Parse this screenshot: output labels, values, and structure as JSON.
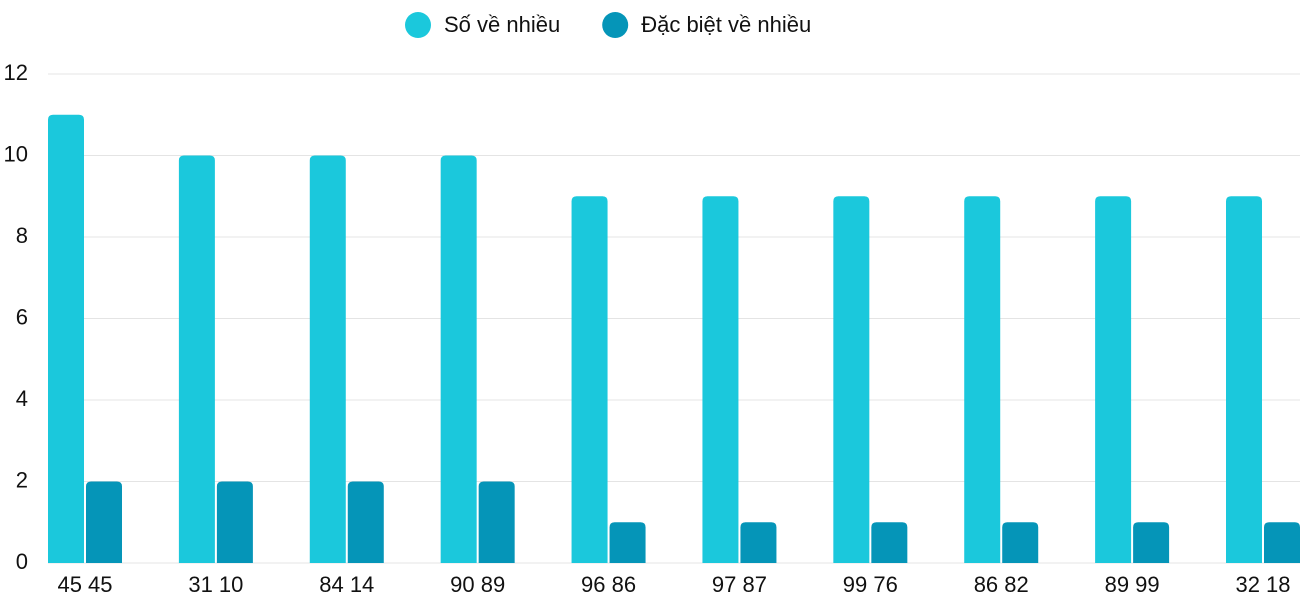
{
  "chart_data": {
    "type": "bar",
    "categories": [
      "45 45",
      "31 10",
      "84 14",
      "90 89",
      "96 86",
      "97 87",
      "99 76",
      "86 82",
      "89 99",
      "32 18"
    ],
    "series": [
      {
        "name": "Số về nhiều",
        "color": "#1bc8dc",
        "values": [
          11,
          10,
          10,
          10,
          9,
          9,
          9,
          9,
          9,
          9
        ]
      },
      {
        "name": "Đặc biệt về nhiều",
        "color": "#0595b8",
        "values": [
          2,
          2,
          2,
          2,
          1,
          1,
          1,
          1,
          1,
          1
        ]
      }
    ],
    "ylim": [
      0,
      12
    ],
    "yticks": [
      0,
      2,
      4,
      6,
      8,
      10,
      12
    ],
    "grid": true,
    "legend": "top"
  }
}
